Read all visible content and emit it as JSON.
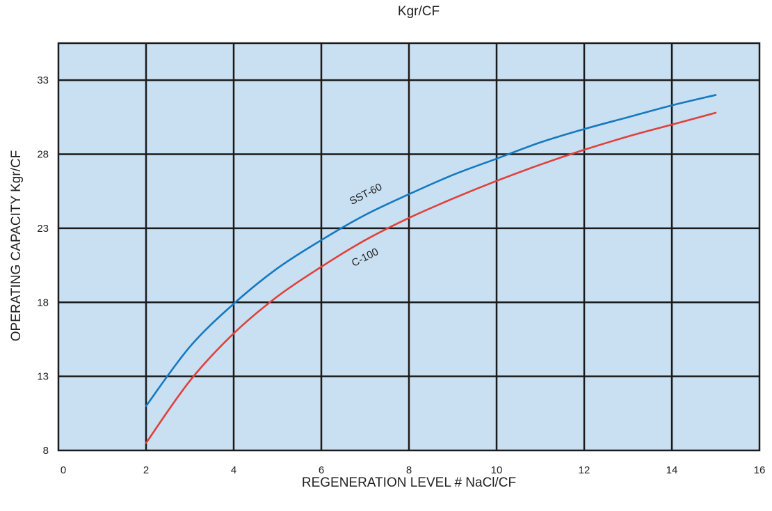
{
  "chart_data": {
    "type": "line",
    "title": "Kgr/CF",
    "xlabel": "REGENERATION LEVEL # NaCl/CF",
    "ylabel": "OPERATING CAPACITY Kgr/CF",
    "xlim": [
      0,
      16
    ],
    "ylim": [
      8,
      35.5
    ],
    "x_ticks": [
      0,
      2,
      4,
      6,
      8,
      10,
      12,
      14,
      16
    ],
    "y_ticks": [
      8,
      13,
      18,
      23,
      28,
      33
    ],
    "x_tick_labels": [
      "0",
      "2",
      "4",
      "6",
      "8",
      "10",
      "12",
      "14",
      "16"
    ],
    "y_tick_labels": [
      "8",
      "13",
      "18",
      "23",
      "28",
      "33"
    ],
    "grid": true,
    "colors": {
      "background": "#c9dff2",
      "grid": "#1a1a1a",
      "SST-60": "#1479c0",
      "C-100": "#e0403a"
    },
    "series": [
      {
        "name": "SST-60",
        "color": "#1479c0",
        "x": [
          2,
          3,
          4,
          5,
          6,
          7,
          8,
          9,
          10,
          11,
          12,
          13,
          14,
          15
        ],
        "y": [
          11.0,
          15.0,
          17.9,
          20.3,
          22.2,
          23.9,
          25.3,
          26.6,
          27.7,
          28.8,
          29.7,
          30.5,
          31.3,
          32.0
        ]
      },
      {
        "name": "C-100",
        "color": "#e0403a",
        "x": [
          2,
          3,
          4,
          5,
          6,
          7,
          8,
          9,
          10,
          11,
          12,
          13,
          14,
          15
        ],
        "y": [
          8.5,
          12.7,
          15.9,
          18.4,
          20.4,
          22.2,
          23.7,
          25.0,
          26.2,
          27.3,
          28.3,
          29.2,
          30.0,
          30.8
        ]
      }
    ]
  }
}
